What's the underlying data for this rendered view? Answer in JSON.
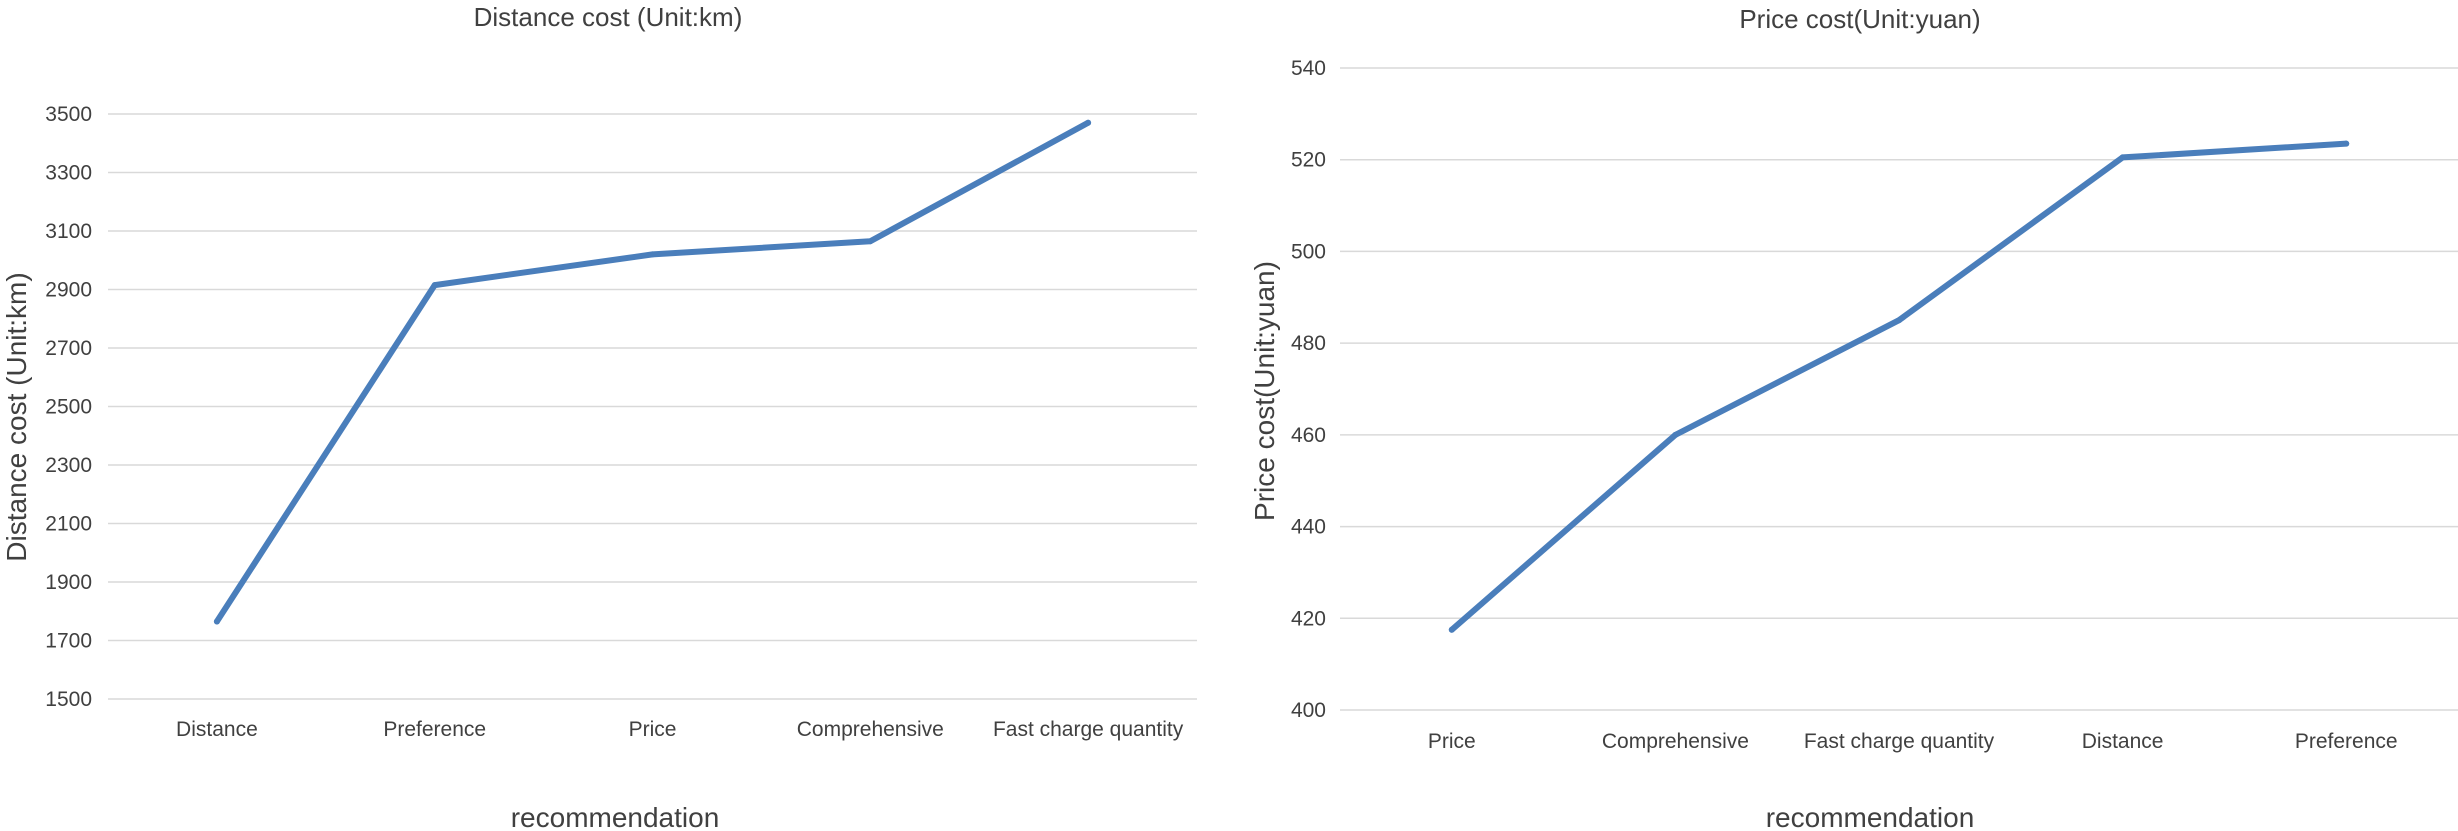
{
  "chart_data": [
    {
      "type": "line",
      "title": "Distance cost (Unit:km)",
      "xlabel": "recommendation",
      "ylabel": "Distance cost (Unit:km)",
      "categories": [
        "Distance",
        "Preference",
        "Price",
        "Comprehensive",
        "Fast charge quantity"
      ],
      "series": [
        {
          "values": [
            1765,
            2915,
            3020,
            3065,
            3470
          ]
        }
      ],
      "ylim": [
        1500,
        3500
      ],
      "yticks": [
        1500,
        1700,
        1900,
        2100,
        2300,
        2500,
        2700,
        2900,
        3100,
        3300,
        3500
      ],
      "grid": true,
      "color": "#4a7ebb"
    },
    {
      "type": "line",
      "title": "Price cost(Unit:yuan)",
      "xlabel": "recommendation",
      "ylabel": "Price cost(Unit:yuan)",
      "categories": [
        "Price",
        "Comprehensive",
        "Fast charge quantity",
        "Distance",
        "Preference"
      ],
      "series": [
        {
          "values": [
            417.5,
            460,
            485,
            520.5,
            523.5
          ]
        }
      ],
      "ylim": [
        400,
        540
      ],
      "yticks": [
        400,
        420,
        440,
        460,
        480,
        500,
        520,
        540
      ],
      "grid": true,
      "color": "#4a7ebb"
    }
  ]
}
